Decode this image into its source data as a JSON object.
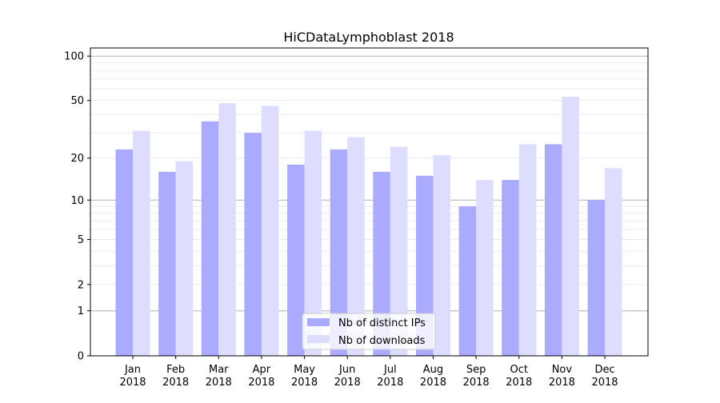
{
  "chart_data": {
    "type": "bar",
    "title": "HiCDataLymphoblast 2018",
    "xlabel": "",
    "ylabel": "",
    "yscale": "symlog (log10(1+y))",
    "ylim": [
      0,
      120
    ],
    "yticks": [
      0,
      1,
      2,
      5,
      10,
      20,
      50,
      100
    ],
    "grid": "horizontal, major and minor",
    "legend_position": "bottom-center",
    "categories": [
      "Jan\n2018",
      "Feb\n2018",
      "Mar\n2018",
      "Apr\n2018",
      "May\n2018",
      "Jun\n2018",
      "Jul\n2018",
      "Aug\n2018",
      "Sep\n2018",
      "Oct\n2018",
      "Nov\n2018",
      "Dec\n2018"
    ],
    "series": [
      {
        "name": "Nb of distinct IPs",
        "color": "#aaaaff",
        "values": [
          23,
          16,
          36,
          30,
          18,
          23,
          16,
          15,
          9,
          14,
          25,
          10
        ]
      },
      {
        "name": "Nb of downloads",
        "color": "#ddddff",
        "values": [
          31,
          19,
          48,
          46,
          31,
          28,
          24,
          21,
          14,
          25,
          53,
          17
        ]
      }
    ]
  }
}
